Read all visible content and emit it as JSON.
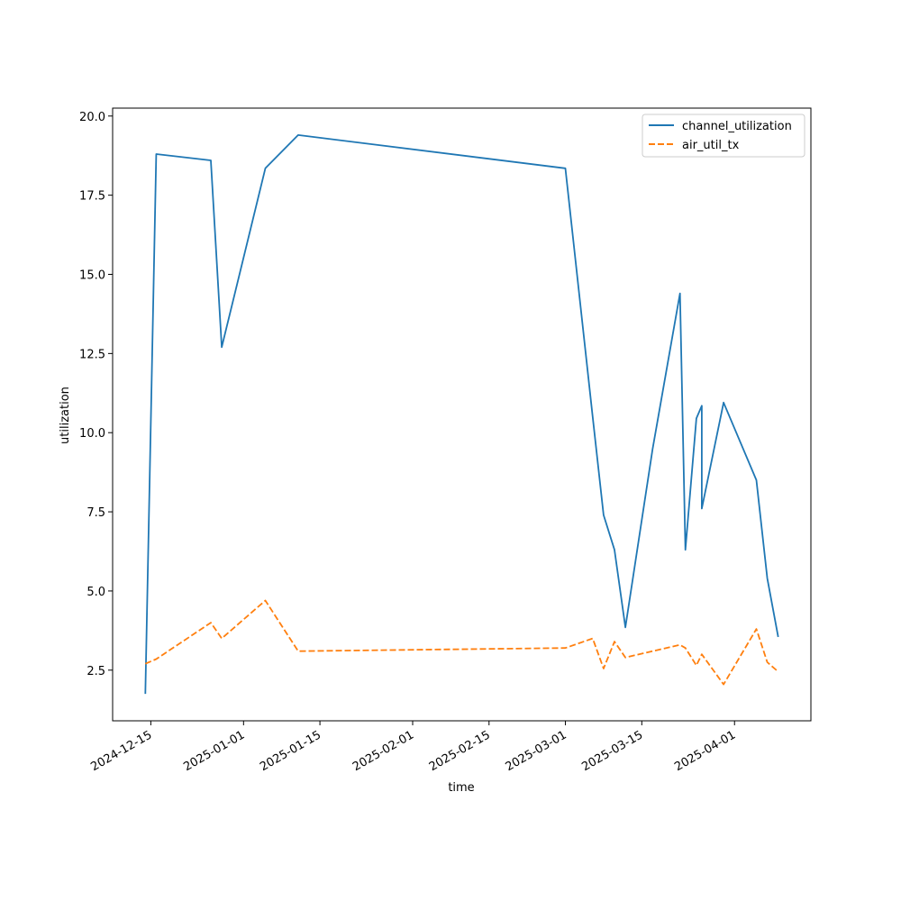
{
  "chart_data": {
    "type": "line",
    "title": "",
    "xlabel": "time",
    "ylabel": "utilization",
    "x_ticks": [
      "2024-12-15",
      "2025-01-01",
      "2025-01-15",
      "2025-02-01",
      "2025-02-15",
      "2025-03-01",
      "2025-03-15",
      "2025-04-01"
    ],
    "y_ticks": [
      "2.5",
      "5.0",
      "7.5",
      "10.0",
      "12.5",
      "15.0",
      "17.5",
      "20.0"
    ],
    "xlim": [
      "2024-12-08",
      "2025-04-15"
    ],
    "ylim": [
      0.9,
      20.25
    ],
    "grid": false,
    "legend_position": "top-right",
    "colors": {
      "channel_utilization": "#1f77b4",
      "air_util_tx": "#ff7f0e"
    },
    "series": [
      {
        "name": "channel_utilization",
        "style": "solid",
        "points": [
          [
            "2024-12-14",
            1.75
          ],
          [
            "2024-12-16",
            18.8
          ],
          [
            "2024-12-26",
            18.6
          ],
          [
            "2024-12-28",
            12.7
          ],
          [
            "2025-01-05",
            18.35
          ],
          [
            "2025-01-11",
            19.4
          ],
          [
            "2025-03-01",
            18.35
          ],
          [
            "2025-03-06",
            10.5
          ],
          [
            "2025-03-08",
            7.4
          ],
          [
            "2025-03-10",
            6.3
          ],
          [
            "2025-03-12",
            3.85
          ],
          [
            "2025-03-17",
            9.5
          ],
          [
            "2025-03-22",
            14.4
          ],
          [
            "2025-03-23",
            6.3
          ],
          [
            "2025-03-25",
            10.45
          ],
          [
            "2025-03-26",
            10.85
          ],
          [
            "2025-03-26",
            7.6
          ],
          [
            "2025-03-30",
            10.95
          ],
          [
            "2025-04-05",
            8.5
          ],
          [
            "2025-04-07",
            5.4
          ],
          [
            "2025-04-09",
            3.55
          ]
        ]
      },
      {
        "name": "air_util_tx",
        "style": "dashed",
        "points": [
          [
            "2024-12-14",
            2.7
          ],
          [
            "2024-12-16",
            2.85
          ],
          [
            "2024-12-26",
            4.0
          ],
          [
            "2024-12-28",
            3.5
          ],
          [
            "2025-01-05",
            4.7
          ],
          [
            "2025-01-11",
            3.1
          ],
          [
            "2025-03-01",
            3.2
          ],
          [
            "2025-03-06",
            3.5
          ],
          [
            "2025-03-08",
            2.55
          ],
          [
            "2025-03-10",
            3.4
          ],
          [
            "2025-03-12",
            2.9
          ],
          [
            "2025-03-22",
            3.3
          ],
          [
            "2025-03-23",
            3.2
          ],
          [
            "2025-03-25",
            2.65
          ],
          [
            "2025-03-26",
            3.0
          ],
          [
            "2025-03-30",
            2.05
          ],
          [
            "2025-04-05",
            3.8
          ],
          [
            "2025-04-07",
            2.75
          ],
          [
            "2025-04-09",
            2.45
          ]
        ]
      }
    ]
  }
}
